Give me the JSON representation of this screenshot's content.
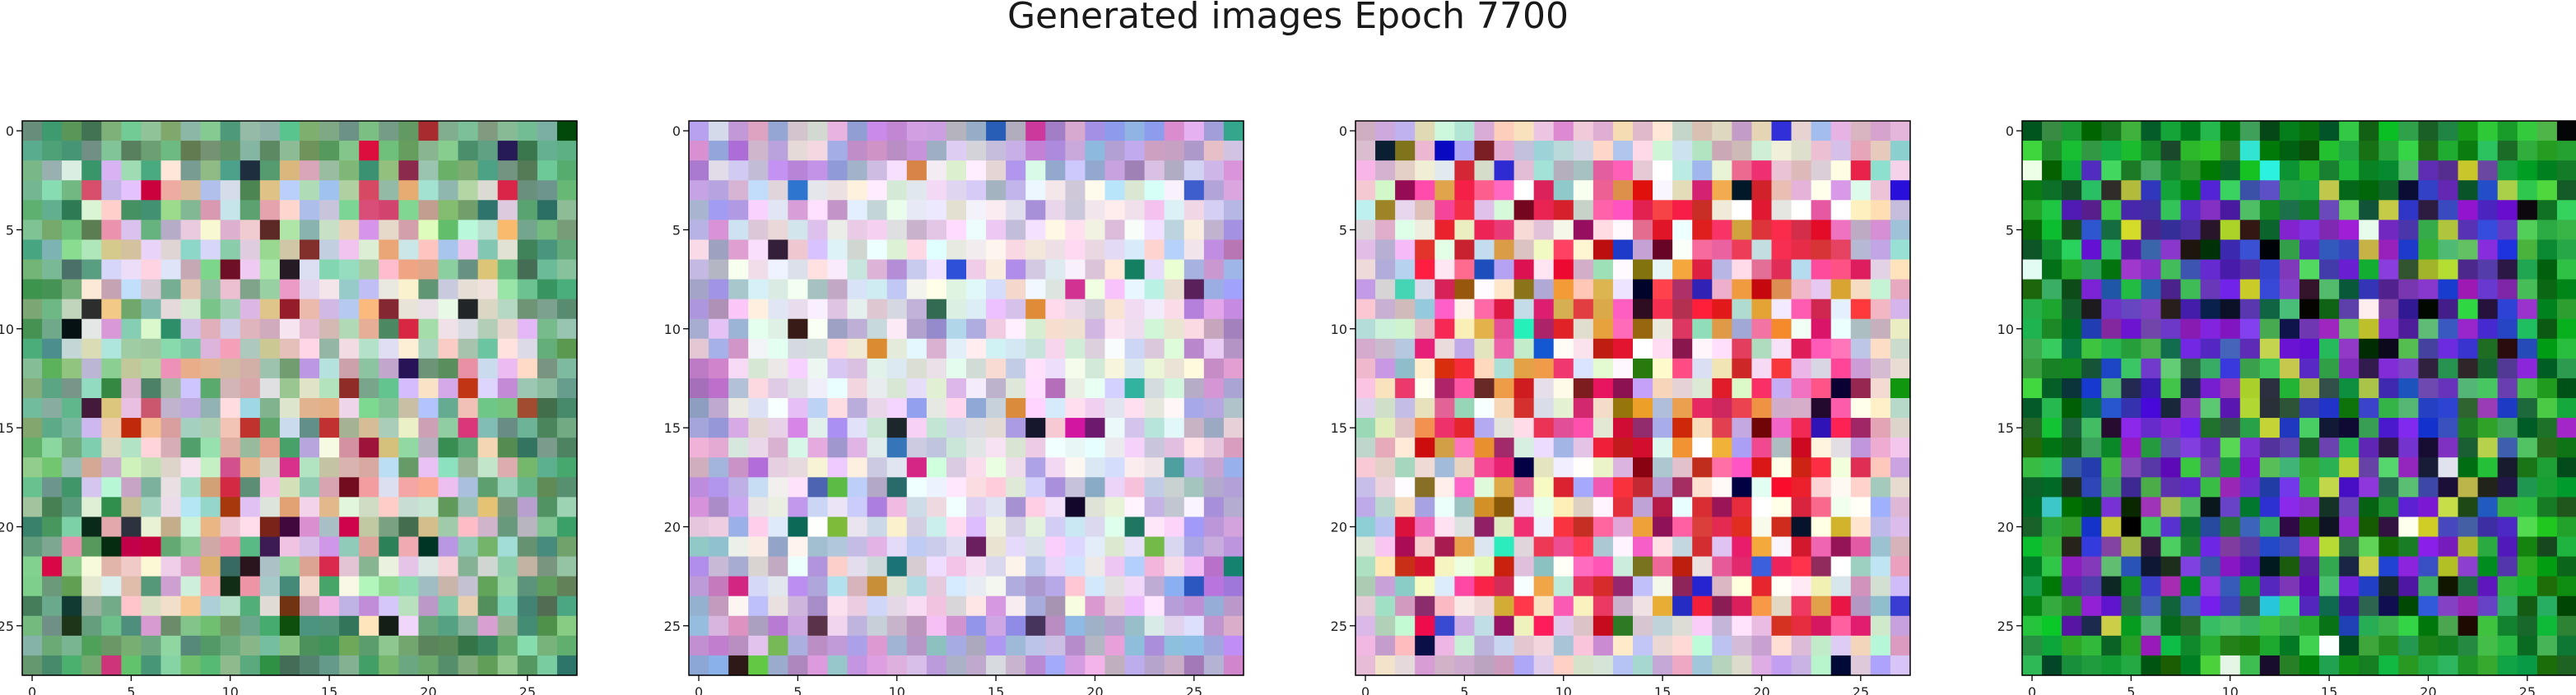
{
  "figure": {
    "title": "Generated images Epoch 7700"
  },
  "chart_data": [
    {
      "type": "heatmap",
      "title": "",
      "grid_size": [
        28,
        28
      ],
      "x_ticks": [
        "0",
        "5",
        "10",
        "15",
        "20",
        "25"
      ],
      "y_ticks": [
        "0",
        "5",
        "10",
        "15",
        "20",
        "25"
      ],
      "x_tick_values": [
        0,
        5,
        10,
        15,
        20,
        25
      ],
      "y_tick_values": [
        0,
        5,
        10,
        15,
        20,
        25
      ],
      "grid": false,
      "palette": {
        "border": [
          "#5a9e6e",
          "#6fb07e",
          "#4e8f64",
          "#7fbf8f",
          "#5f9f7a",
          "#8fc7a0",
          "#3f8058",
          "#6aa57e"
        ],
        "middle": [
          "#e6d2e6",
          "#c8e6c8",
          "#b4d2e6",
          "#f0e6dc",
          "#d2b4a0",
          "#e6b482",
          "#c8a0d2",
          "#a0d2b4",
          "#dcc8f0",
          "#8fc7a0",
          "#e0a0b0",
          "#f0d0c0"
        ],
        "accent": [
          "#1a1a1a",
          "#8c1a3c",
          "#c8143c",
          "#6e1e1e",
          "#2d1e46",
          "#d24678",
          "#b43c1e",
          "#0f3c1e"
        ]
      },
      "seed": 11
    },
    {
      "type": "heatmap",
      "title": "",
      "grid_size": [
        28,
        28
      ],
      "x_ticks": [
        "0",
        "5",
        "10",
        "15",
        "20",
        "25"
      ],
      "y_ticks": [
        "0",
        "5",
        "10",
        "15",
        "20",
        "25"
      ],
      "x_tick_values": [
        0,
        5,
        10,
        15,
        20,
        25
      ],
      "y_tick_values": [
        0,
        5,
        10,
        15,
        20,
        25
      ],
      "grid": false,
      "palette": {
        "border": [
          "#c8a0d2",
          "#b4a0e6",
          "#d2b4dc",
          "#a0b4d2",
          "#c896d2",
          "#e6c8e6",
          "#b482c8",
          "#a0a0dc"
        ],
        "middle": [
          "#f0f0f0",
          "#e6e6f0",
          "#f0e6f0",
          "#dcdce6",
          "#e6f0e6",
          "#d2c8e6",
          "#f0dcdc",
          "#c8dce6",
          "#e6d2f0",
          "#f5f0f5"
        ],
        "accent": [
          "#3ca0a0",
          "#c82896",
          "#5a1e5a",
          "#281e28",
          "#6ec850",
          "#d28232",
          "#1e6e64",
          "#3c64c8"
        ]
      },
      "seed": 23
    },
    {
      "type": "heatmap",
      "title": "",
      "grid_size": [
        28,
        28
      ],
      "x_ticks": [
        "0",
        "5",
        "10",
        "15",
        "20",
        "25"
      ],
      "y_ticks": [
        "0",
        "5",
        "10",
        "15",
        "20",
        "25"
      ],
      "x_tick_values": [
        0,
        5,
        10,
        15,
        20,
        25
      ],
      "y_tick_values": [
        0,
        5,
        10,
        15,
        20,
        25
      ],
      "grid": false,
      "palette": {
        "border": [
          "#c8a0d2",
          "#e6c8e6",
          "#a0d2c8",
          "#f0c8d2",
          "#b4b4e6",
          "#dcb4c8",
          "#c8e6dc",
          "#f0dcc8"
        ],
        "middle": [
          "#e61e3c",
          "#f03250",
          "#ffffff",
          "#f0f0f0",
          "#f55a96",
          "#e6a03c",
          "#d21e1e",
          "#f0e6c8",
          "#ff64b4",
          "#dc2864",
          "#fff0f0",
          "#a01e5a"
        ],
        "accent": [
          "#1e1e1e",
          "#1e1ec8",
          "#1e8c1e",
          "#781414",
          "#3cdcb4",
          "#0a0a3c",
          "#8c6e1e",
          "#2850c8"
        ]
      },
      "seed": 37
    },
    {
      "type": "heatmap",
      "title": "",
      "grid_size": [
        28,
        28
      ],
      "x_ticks": [
        "0",
        "5",
        "10",
        "15",
        "20",
        "25"
      ],
      "y_ticks": [
        "0",
        "5",
        "10",
        "15",
        "20",
        "25"
      ],
      "x_tick_values": [
        0,
        5,
        10,
        15,
        20,
        25
      ],
      "y_tick_values": [
        0,
        5,
        10,
        15,
        20,
        25
      ],
      "grid": false,
      "palette": {
        "border": [
          "#0a8c1e",
          "#1eb432",
          "#0a6e14",
          "#28a03c",
          "#3cc850",
          "#14781e",
          "#0a5a14",
          "#32b450",
          "#1e9632"
        ],
        "middle": [
          "#5a1ec8",
          "#7832dc",
          "#2846c8",
          "#3cb450",
          "#6e3cb4",
          "#1e1e3c",
          "#8c28c8",
          "#3250b4",
          "#50c864",
          "#4628a0",
          "#b4c83c",
          "#1e643c"
        ],
        "accent": [
          "#000000",
          "#0a0a0a",
          "#1e1e1e",
          "#c8c83c",
          "#f0f0f0",
          "#3cdcdc",
          "#0a1e0a",
          "#a01ec8"
        ]
      },
      "seed": 53
    }
  ]
}
